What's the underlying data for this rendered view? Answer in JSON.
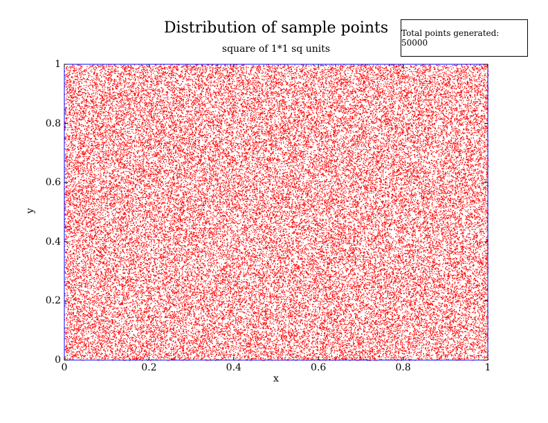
{
  "chart_data": {
    "type": "scatter",
    "title": "Distribution of sample points",
    "subtitle": "square of 1*1 sq units",
    "xlabel": "x",
    "ylabel": "y",
    "xlim": [
      0,
      1
    ],
    "ylim": [
      0,
      1
    ],
    "x_ticks": [
      "0",
      "0.2",
      "0.4",
      "0.6",
      "0.8",
      "1"
    ],
    "y_ticks": [
      "0",
      "0.2",
      "0.4",
      "0.6",
      "0.8",
      "1"
    ],
    "annotation": "Total points generated: 50000",
    "n_points": 50000,
    "distribution": "uniform random over [0,1] x [0,1]",
    "grid": false,
    "colors": {
      "points": "#ff0000",
      "axes_frame": "#0000ff",
      "text": "#000000"
    }
  }
}
